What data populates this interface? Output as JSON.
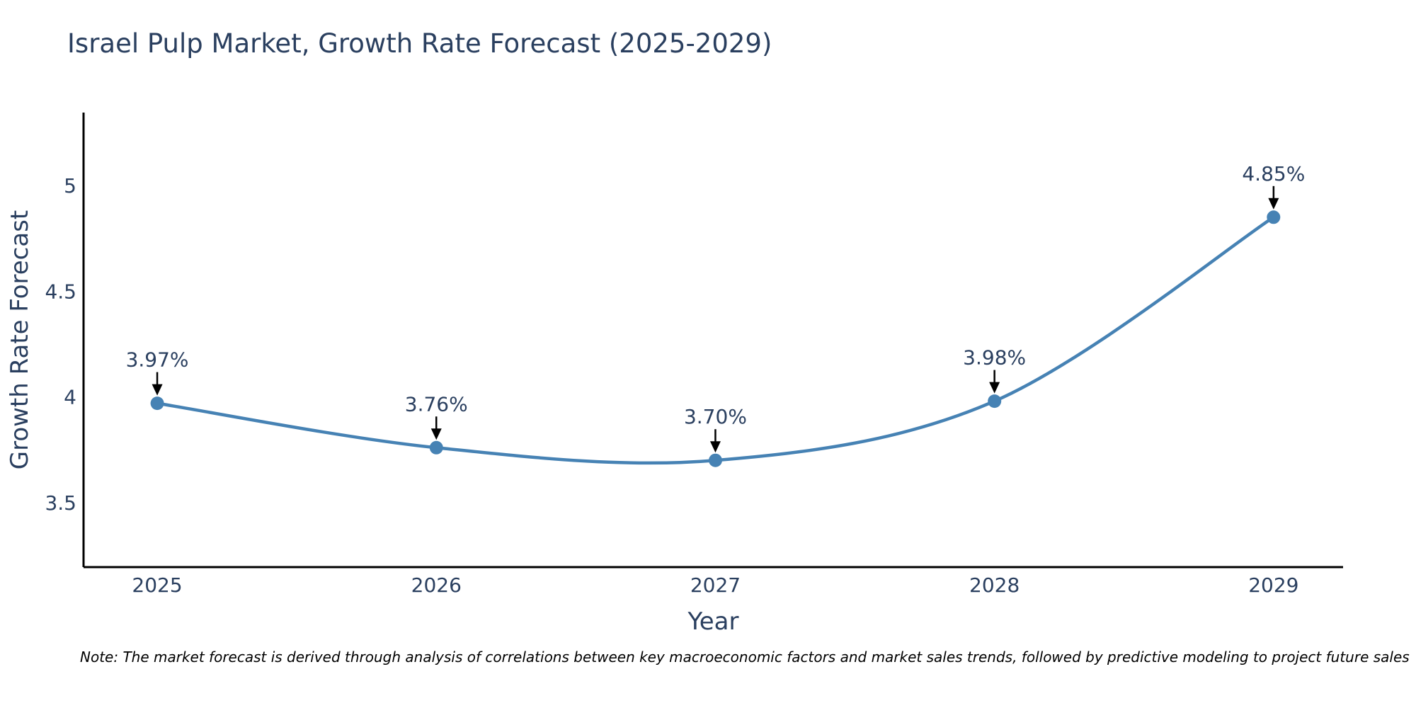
{
  "chart_data": {
    "type": "line",
    "title": "Israel Pulp Market, Growth Rate Forecast (2025-2029)",
    "xlabel": "Year",
    "ylabel": "Growth Rate Forecast",
    "x": [
      2025,
      2026,
      2027,
      2028,
      2029
    ],
    "x_tick_labels": [
      "2025",
      "2026",
      "2027",
      "2028",
      "2029"
    ],
    "series": [
      {
        "name": "Growth Rate Forecast",
        "values": [
          3.97,
          3.76,
          3.7,
          3.98,
          4.85
        ],
        "point_labels": [
          "3.97%",
          "3.76%",
          "3.70%",
          "3.98%",
          "4.85%"
        ]
      }
    ],
    "y_ticks": [
      3.5,
      4,
      4.5,
      5
    ],
    "y_tick_labels": [
      "3.5",
      "4",
      "4.5",
      "5"
    ],
    "ylim": [
      3.195,
      5.345
    ],
    "xlim": [
      2024.736,
      2029.249
    ],
    "grid": false,
    "legend_position": "none",
    "line_style": "spline",
    "colors": {
      "line": "#4682b4",
      "marker": "#4682b4",
      "annotation_arrow": "#000000",
      "axis_line": "#000000",
      "text": "#2a3f5f",
      "background": "#ffffff"
    },
    "note": "Note: The market forecast is derived through analysis of correlations between key macroeconomic factors and market sales trends, followed by predictive modeling to project future sales"
  }
}
